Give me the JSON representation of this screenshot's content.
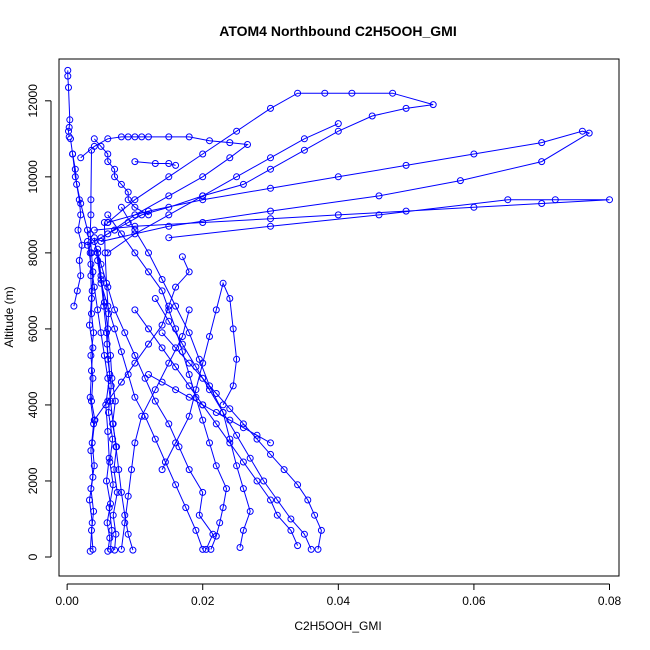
{
  "chart_data": {
    "type": "line",
    "title": "ATOM4 Northbound C2H5OOH_GMI",
    "xlabel": "C2H5OOH_GMI",
    "ylabel": "Altitude (m)",
    "xlim": [
      -0.0012,
      0.0814
    ],
    "ylim": [
      -500,
      13100
    ],
    "x_ticks": [
      0.0,
      0.02,
      0.04,
      0.06,
      0.08
    ],
    "x_tick_labels": [
      "0.00",
      "0.02",
      "0.04",
      "0.06",
      "0.08"
    ],
    "y_ticks": [
      0,
      2000,
      4000,
      6000,
      8000,
      10000,
      12000
    ],
    "y_tick_labels": [
      "0",
      "2000",
      "4000",
      "6000",
      "8000",
      "10000",
      "12000"
    ],
    "marker": "open-circle",
    "series_color": "#0000ff",
    "grid": false,
    "series": [
      {
        "x": [
          0.0001,
          0.0001,
          0.0002,
          0.0004,
          0.0003,
          0.0002,
          0.0003
        ],
        "y": [
          12800,
          12650,
          12350,
          11500,
          11300,
          11200,
          11050
        ]
      },
      {
        "x": [
          0.0038,
          0.0036,
          0.0039,
          0.0035,
          0.004,
          0.0037,
          0.0041,
          0.0036,
          0.0038,
          0.0035,
          0.0039,
          0.0036,
          0.0037,
          0.0038,
          0.0036,
          0.0034,
          0.0035,
          0.0035,
          0.0036
        ],
        "y": [
          200,
          700,
          1200,
          1800,
          2400,
          3000,
          3600,
          4100,
          4700,
          5300,
          5900,
          6400,
          7000,
          7500,
          8000,
          8500,
          9000,
          9400,
          10700
        ]
      },
      {
        "x": [
          0.0034,
          0.0037,
          0.0033,
          0.0038,
          0.0035,
          0.0039,
          0.0034,
          0.0036,
          0.0038,
          0.0033,
          0.0036,
          0.0035,
          0.0034,
          0.003,
          0.002,
          0.0012,
          0.0008
        ],
        "y": [
          150,
          900,
          1500,
          2100,
          2800,
          3500,
          4200,
          4900,
          5500,
          6100,
          6800,
          7400,
          8000,
          8600,
          9300,
          10000,
          10600
        ]
      },
      {
        "x": [
          0.004,
          0.005,
          0.006,
          0.006,
          0.007,
          0.007,
          0.008,
          0.009,
          0.009,
          0.01,
          0.012
        ],
        "y": [
          11000,
          10800,
          10600,
          10400,
          10200,
          10000,
          9800,
          9600,
          9400,
          9200,
          9000
        ]
      },
      {
        "x": [
          0.01,
          0.013,
          0.015,
          0.016
        ],
        "y": [
          10400,
          10350,
          10350,
          10300
        ]
      },
      {
        "x": [
          0.006,
          0.0063,
          0.0059,
          0.0064,
          0.0058,
          0.0062,
          0.006,
          0.0057,
          0.0063,
          0.0059,
          0.0061,
          0.0058,
          0.0056,
          0.0055
        ],
        "y": [
          150,
          500,
          900,
          1400,
          2000,
          2600,
          3300,
          4000,
          4800,
          5600,
          6400,
          7200,
          8000,
          8800
        ]
      },
      {
        "x": [
          0.0064,
          0.0066,
          0.0062,
          0.0068,
          0.0063,
          0.0067,
          0.0061,
          0.0065,
          0.006,
          0.0058,
          0.0054,
          0.005,
          0.0045
        ],
        "y": [
          200,
          700,
          1300,
          1900,
          2500,
          3100,
          3800,
          4500,
          5200,
          5900,
          6600,
          7300,
          8000
        ]
      },
      {
        "x": [
          0.007,
          0.0072,
          0.0068,
          0.0074,
          0.0069,
          0.0073,
          0.0067,
          0.0071,
          0.0066,
          0.0064,
          0.006,
          0.0055,
          0.005,
          0.0045
        ],
        "y": [
          180,
          600,
          1100,
          1700,
          2300,
          2900,
          3500,
          4100,
          4700,
          5300,
          6000,
          6700,
          7400,
          8100
        ]
      },
      {
        "x": [
          0.0097,
          0.009,
          0.0085,
          0.008,
          0.0076,
          0.0072,
          0.0068,
          0.0064,
          0.006,
          0.0055,
          0.005,
          0.0045,
          0.004,
          0.0035,
          0.003
        ],
        "y": [
          180,
          600,
          1100,
          1700,
          2300,
          2900,
          3500,
          4100,
          4700,
          5300,
          5900,
          6500,
          7100,
          7700,
          8300
        ]
      },
      {
        "x": [
          0.02,
          0.019,
          0.0175,
          0.016,
          0.0145,
          0.013,
          0.0115,
          0.01,
          0.009,
          0.008,
          0.007,
          0.006,
          0.005,
          0.0045,
          0.004
        ],
        "y": [
          200,
          700,
          1300,
          1900,
          2500,
          3100,
          3700,
          4200,
          4800,
          5400,
          6000,
          6600,
          7200,
          7800,
          8400
        ]
      },
      {
        "x": [
          0.0205,
          0.0215,
          0.0195,
          0.02,
          0.018,
          0.0165,
          0.015,
          0.013,
          0.0115,
          0.01,
          0.0085,
          0.007,
          0.006,
          0.005,
          0.004
        ],
        "y": [
          200,
          600,
          1100,
          1700,
          2300,
          2900,
          3500,
          4100,
          4700,
          5300,
          5900,
          6500,
          7100,
          7700,
          8300
        ]
      },
      {
        "x": [
          0.0212,
          0.022,
          0.0225,
          0.023,
          0.0235,
          0.022,
          0.021,
          0.02,
          0.019,
          0.018,
          0.017,
          0.016,
          0.015,
          0.014,
          0.012,
          0.01,
          0.008,
          0.006
        ],
        "y": [
          200,
          550,
          900,
          1300,
          1800,
          2400,
          3000,
          3600,
          4200,
          4800,
          5400,
          6000,
          6500,
          7000,
          7500,
          8000,
          8500,
          9000
        ]
      },
      {
        "x": [
          0.0255,
          0.026,
          0.027,
          0.026,
          0.025,
          0.024,
          0.023,
          0.021,
          0.0195,
          0.018,
          0.016,
          0.014,
          0.012,
          0.01,
          0.008
        ],
        "y": [
          250,
          700,
          1200,
          1800,
          2400,
          3100,
          3800,
          4500,
          5200,
          5900,
          6600,
          7300,
          8000,
          8600,
          9200
        ]
      },
      {
        "x": [
          0.023,
          0.0245,
          0.025,
          0.0245,
          0.024,
          0.023,
          0.022,
          0.021,
          0.02,
          0.019,
          0.018,
          0.016,
          0.014
        ],
        "y": [
          4000,
          4500,
          5200,
          6000,
          6800,
          7200,
          6500,
          5800,
          5100,
          4400,
          3700,
          3000,
          2300
        ]
      },
      {
        "x": [
          0.034,
          0.033,
          0.031,
          0.03,
          0.028,
          0.026,
          0.024,
          0.022,
          0.02,
          0.018,
          0.016,
          0.014,
          0.012,
          0.01
        ],
        "y": [
          300,
          700,
          1100,
          1500,
          2000,
          2500,
          3000,
          3500,
          4000,
          4500,
          5000,
          5500,
          6000,
          6500
        ]
      },
      {
        "x": [
          0.036,
          0.035,
          0.033,
          0.031,
          0.029,
          0.027,
          0.025,
          0.023,
          0.021,
          0.019,
          0.017,
          0.015,
          0.013
        ],
        "y": [
          200,
          600,
          1000,
          1500,
          2000,
          2600,
          3200,
          3800,
          4400,
          5000,
          5600,
          6200,
          6800
        ]
      },
      {
        "x": [
          0.037,
          0.0375,
          0.0365,
          0.0355,
          0.034,
          0.032,
          0.03,
          0.028,
          0.026,
          0.024,
          0.022,
          0.02,
          0.018,
          0.016,
          0.014
        ],
        "y": [
          200,
          700,
          1100,
          1500,
          1900,
          2300,
          2700,
          3100,
          3500,
          3900,
          4300,
          4700,
          5100,
          5500,
          5900
        ]
      },
      {
        "x": [
          0.03,
          0.028,
          0.026,
          0.024,
          0.022,
          0.02,
          0.018,
          0.016,
          0.014,
          0.012
        ],
        "y": [
          3000,
          3200,
          3400,
          3600,
          3800,
          4000,
          4200,
          4400,
          4600,
          4800
        ]
      },
      {
        "x": [
          0.003,
          0.005,
          0.007,
          0.009,
          0.011,
          0.015,
          0.02,
          0.026,
          0.03,
          0.035,
          0.04,
          0.045,
          0.05,
          0.054,
          0.048,
          0.042,
          0.038,
          0.034,
          0.03,
          0.025,
          0.02,
          0.015,
          0.01,
          0.006
        ],
        "y": [
          8200,
          8400,
          8600,
          8800,
          9000,
          9200,
          9500,
          9800,
          10200,
          10700,
          11200,
          11600,
          11800,
          11900,
          12200,
          12200,
          12200,
          12200,
          11800,
          11200,
          10600,
          10000,
          9400,
          8800
        ]
      },
      {
        "x": [
          0.04,
          0.035,
          0.03,
          0.025,
          0.02,
          0.015,
          0.01,
          0.006
        ],
        "y": [
          11400,
          11000,
          10500,
          10000,
          9500,
          9000,
          8500,
          8000
        ]
      },
      {
        "x": [
          0.005,
          0.015,
          0.03,
          0.046,
          0.058,
          0.07,
          0.077,
          0.076,
          0.07,
          0.06,
          0.05,
          0.04,
          0.03,
          0.02,
          0.012,
          0.006
        ],
        "y": [
          8300,
          8700,
          9100,
          9500,
          9900,
          10400,
          11150,
          11200,
          10900,
          10600,
          10300,
          10000,
          9700,
          9400,
          9100,
          8800
        ]
      },
      {
        "x": [
          0.015,
          0.03,
          0.046,
          0.065,
          0.072,
          0.08,
          0.07,
          0.06,
          0.05,
          0.04,
          0.03,
          0.02,
          0.01,
          0.004
        ],
        "y": [
          8400,
          8700,
          9000,
          9400,
          9400,
          9400,
          9300,
          9200,
          9100,
          9000,
          8900,
          8800,
          8700,
          8600
        ]
      },
      {
        "x": [
          0.002,
          0.004,
          0.006,
          0.008,
          0.009,
          0.01,
          0.011,
          0.012,
          0.015,
          0.018,
          0.021,
          0.024,
          0.0266,
          0.024,
          0.02,
          0.015,
          0.01,
          0.006
        ],
        "y": [
          10500,
          10800,
          11000,
          11050,
          11050,
          11050,
          11050,
          11050,
          11050,
          11050,
          10950,
          10900,
          10850,
          10500,
          10000,
          9500,
          9000,
          8500
        ]
      },
      {
        "x": [
          0.001,
          0.0015,
          0.002,
          0.0018,
          0.0022,
          0.0016,
          0.002,
          0.0018,
          0.0014,
          0.0012,
          0.0008,
          0.0005
        ],
        "y": [
          6600,
          7000,
          7400,
          7800,
          8200,
          8600,
          9000,
          9400,
          9800,
          10200,
          10600,
          11000
        ]
      },
      {
        "x": [
          0.008,
          0.0085,
          0.009,
          0.0095,
          0.01,
          0.011,
          0.013,
          0.015,
          0.017,
          0.018
        ],
        "y": [
          200,
          900,
          1600,
          2300,
          3000,
          3700,
          4400,
          5100,
          5800,
          6500
        ]
      },
      {
        "x": [
          0.017,
          0.018,
          0.016,
          0.015,
          0.014,
          0.012,
          0.01,
          0.008,
          0.006,
          0.004
        ],
        "y": [
          7900,
          7500,
          7100,
          6600,
          6100,
          5600,
          5100,
          4600,
          4100,
          3600
        ]
      }
    ]
  }
}
